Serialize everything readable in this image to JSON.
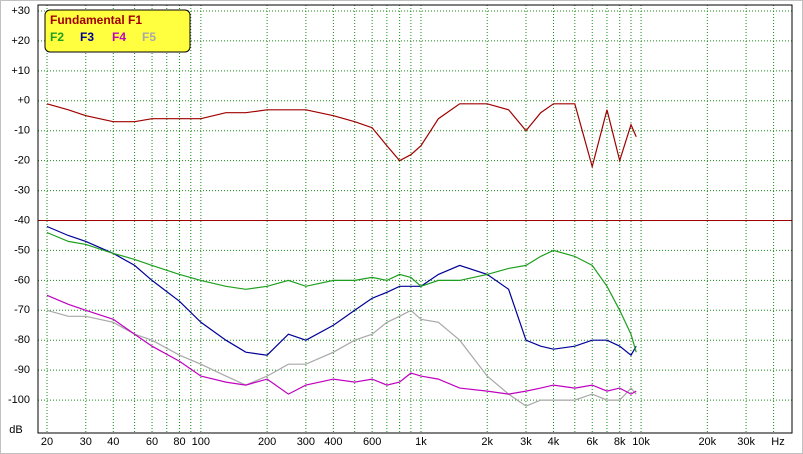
{
  "chart_data": {
    "type": "line",
    "xscale": "log",
    "xlabel": "Hz",
    "ylabel": "dB",
    "xlim": [
      18.2,
      48500
    ],
    "ylim": [
      -111,
      32
    ],
    "xticks": [
      20,
      30,
      40,
      60,
      80,
      100,
      200,
      300,
      400,
      600,
      {
        "value": 1000,
        "label": "1k"
      },
      {
        "value": 2000,
        "label": "2k"
      },
      {
        "value": 3000,
        "label": "3k"
      },
      {
        "value": 4000,
        "label": "4k"
      },
      {
        "value": 6000,
        "label": "6k"
      },
      {
        "value": 8000,
        "label": "8k"
      },
      {
        "value": 10000,
        "label": "10k"
      },
      {
        "value": 20000,
        "label": "20k"
      },
      {
        "value": 30000,
        "label": "30k"
      }
    ],
    "yticks": [
      {
        "value": 30,
        "label": "+30"
      },
      {
        "value": 20,
        "label": "+20"
      },
      {
        "value": 10,
        "label": "+10"
      },
      {
        "value": 0,
        "label": "+0"
      },
      -10,
      -20,
      -30,
      -40,
      -50,
      -60,
      -70,
      -80,
      -90,
      -100
    ],
    "grid": true,
    "legend": "upper-left",
    "threshold": {
      "value": -40,
      "color": "#a00000"
    },
    "x": [
      20,
      25,
      30,
      40,
      50,
      60,
      80,
      100,
      130,
      160,
      200,
      250,
      300,
      400,
      500,
      600,
      700,
      800,
      900,
      1000,
      1200,
      1500,
      2000,
      2500,
      3000,
      3500,
      4000,
      5000,
      6000,
      7000,
      8000,
      9000,
      9500
    ],
    "series": [
      {
        "name": "Fundamental F1",
        "color": "#a00000",
        "values": [
          -1,
          -3,
          -5,
          -7,
          -7,
          -6,
          -6,
          -6,
          -4,
          -4,
          -3,
          -3,
          -3,
          -5,
          -7,
          -9,
          -15,
          -20,
          -18,
          -15,
          -6,
          -1,
          -1,
          -3,
          -10,
          -4,
          -1,
          -1,
          -22,
          -3,
          -20,
          -8,
          -12
        ]
      },
      {
        "name": "F2",
        "color": "#1f9f1f",
        "values": [
          -44,
          -47,
          -48,
          -51,
          -53,
          -55,
          -58,
          -60,
          -62,
          -63,
          -62,
          -60,
          -62,
          -60,
          -60,
          -59,
          -60,
          -58,
          -59,
          -62,
          -60,
          -60,
          -58,
          -56,
          -55,
          -52,
          -50,
          -52,
          -55,
          -62,
          -70,
          -78,
          -84
        ]
      },
      {
        "name": "F3",
        "color": "#000099",
        "values": [
          -42,
          -45,
          -47,
          -51,
          -55,
          -60,
          -67,
          -74,
          -80,
          -84,
          -85,
          -78,
          -80,
          -75,
          -70,
          -66,
          -64,
          -62,
          -62,
          -62,
          -58,
          -55,
          -58,
          -63,
          -80,
          -82,
          -83,
          -82,
          -80,
          -80,
          -82,
          -85,
          -82
        ]
      },
      {
        "name": "F4",
        "color": "#c000c0",
        "values": [
          -65,
          -68,
          -70,
          -73,
          -78,
          -82,
          -87,
          -92,
          -94,
          -95,
          -93,
          -98,
          -95,
          -93,
          -94,
          -93,
          -95,
          -94,
          -91,
          -92,
          -93,
          -96,
          -97,
          -98,
          -97,
          -96,
          -95,
          -96,
          -95,
          -97,
          -96,
          -98,
          -97
        ]
      },
      {
        "name": "F5",
        "color": "#a8a8a8",
        "values": [
          -70,
          -72,
          -72,
          -74,
          -78,
          -80,
          -85,
          -88,
          -92,
          -95,
          -92,
          -88,
          -88,
          -84,
          -80,
          -78,
          -74,
          -72,
          -70,
          -73,
          -74,
          -80,
          -92,
          -98,
          -102,
          -100,
          -100,
          -100,
          -98,
          -100,
          -100,
          -96,
          -98
        ]
      }
    ]
  }
}
